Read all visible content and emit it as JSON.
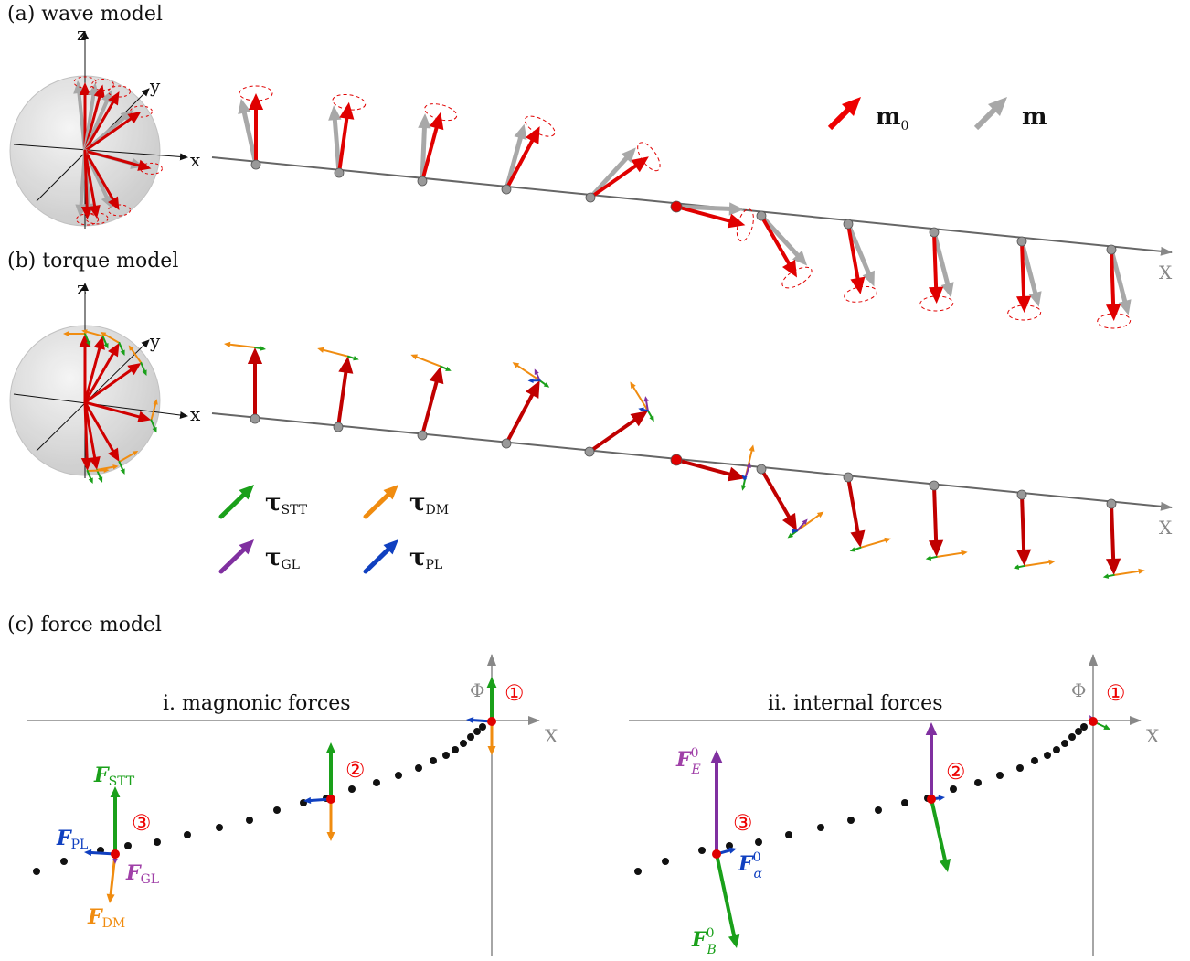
{
  "panels": {
    "a": {
      "title": "(a) wave model"
    },
    "b": {
      "title": "(b) torque model"
    },
    "c": {
      "title": "(c) force model"
    }
  },
  "axes": {
    "x": "x",
    "y": "y",
    "z": "z",
    "X": "X",
    "Phi": "Φ"
  },
  "legend_wave": {
    "m0": "m",
    "m0_sub": "0",
    "m": "m"
  },
  "legend_torque": {
    "stt": "τ",
    "stt_sub": "STT",
    "dm": "τ",
    "dm_sub": "DM",
    "gl": "τ",
    "gl_sub": "GL",
    "pl": "τ",
    "pl_sub": "PL"
  },
  "force_model": {
    "left_title": "i. magnonic forces",
    "right_title": "ii. internal forces",
    "markers": [
      "①",
      "②",
      "③"
    ],
    "left_labels": {
      "stt": "F",
      "stt_sub": "STT",
      "pl": "F",
      "pl_sub": "PL",
      "gl": "F",
      "gl_sub": "GL",
      "dm": "F",
      "dm_sub": "DM"
    },
    "right_labels": {
      "E": "F",
      "E_sup": "0",
      "E_sub": "E",
      "alpha": "F",
      "alpha_sup": "0",
      "alpha_sub": "α",
      "B": "F",
      "B_sup": "0",
      "B_sub": "B"
    }
  },
  "colors": {
    "red": "#e00000",
    "gray": "#a8a8a8",
    "stt": "#1aa01a",
    "dm": "#f08c10",
    "gl": "#8030a0",
    "pl": "#1040c0"
  }
}
